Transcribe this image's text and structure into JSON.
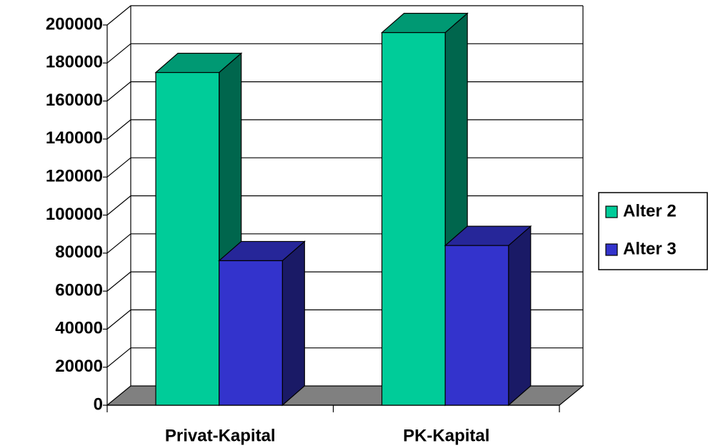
{
  "chart_data": {
    "type": "bar3d",
    "categories": [
      "Privat-Kapital",
      "PK-Kapital"
    ],
    "series": [
      {
        "name": "Alter 2",
        "color": "#00cc99",
        "values": [
          175000,
          196000
        ]
      },
      {
        "name": "Alter 3",
        "color": "#3333cc",
        "values": [
          76000,
          84000
        ]
      }
    ],
    "ylim": [
      0,
      200000
    ],
    "yticks": [
      0,
      20000,
      40000,
      60000,
      80000,
      100000,
      120000,
      140000,
      160000,
      180000,
      200000
    ],
    "grid": true,
    "legend": "right"
  }
}
